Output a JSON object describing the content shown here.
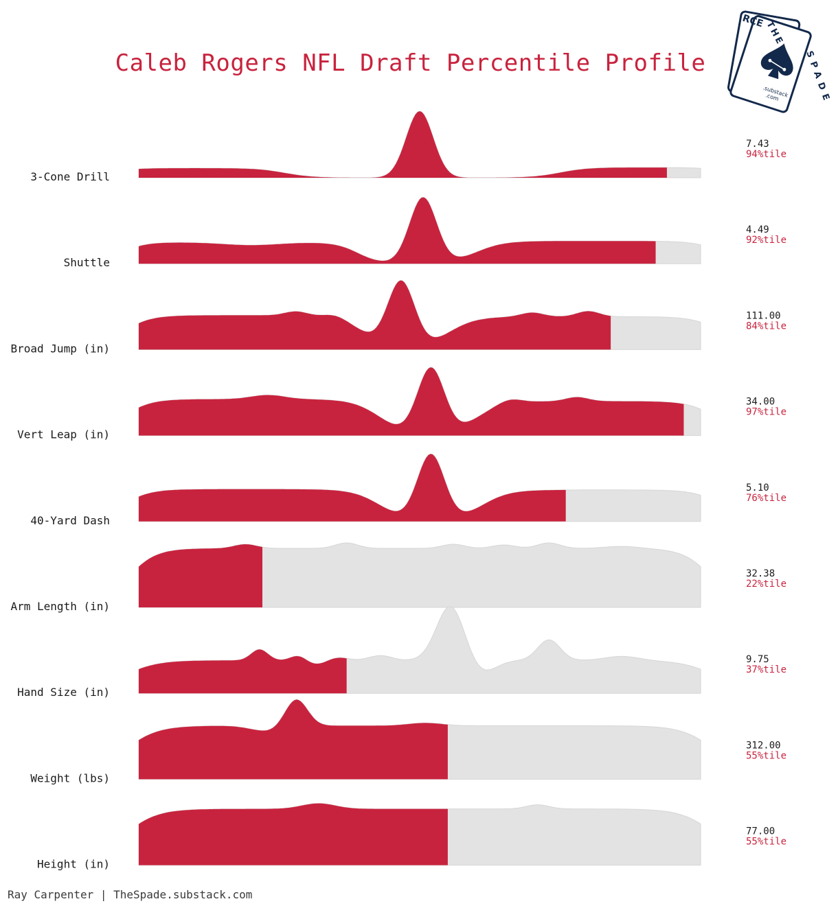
{
  "title": "Caleb Rogers NFL Draft Percentile Profile",
  "footer": "Ray Carpenter | TheSpade.substack.com",
  "logo": {
    "back_card_letters": "RCE",
    "front_card_top": "THE",
    "front_card_right": "SPADE",
    "site": ".substack",
    "site_tld": ".com"
  },
  "colors": {
    "accent": "#c8233e",
    "distribution_fill": "#e3e3e3",
    "label_text": "#1a1a1a",
    "logo_navy": "#13294b"
  },
  "chart_data": {
    "type": "area",
    "description_style": "percentile ridgeline per measurement",
    "rows": [
      {
        "label": "3-Cone Drill",
        "value": "7.43",
        "percentile_label": "94%tile",
        "percentile": 94
      },
      {
        "label": "Shuttle",
        "value": "4.49",
        "percentile_label": "92%tile",
        "percentile": 92
      },
      {
        "label": "Broad Jump (in)",
        "value": "111.00",
        "percentile_label": "84%tile",
        "percentile": 84
      },
      {
        "label": "Vert Leap (in)",
        "value": "34.00",
        "percentile_label": "97%tile",
        "percentile": 97
      },
      {
        "label": "40-Yard Dash",
        "value": "5.10",
        "percentile_label": "76%tile",
        "percentile": 76
      },
      {
        "label": "Arm Length (in)",
        "value": "32.38",
        "percentile_label": "22%tile",
        "percentile": 22
      },
      {
        "label": "Hand Size (in)",
        "value": "9.75",
        "percentile_label": "37%tile",
        "percentile": 37
      },
      {
        "label": "Weight (lbs)",
        "value": "312.00",
        "percentile_label": "55%tile",
        "percentile": 55
      },
      {
        "label": "Height (in)",
        "value": "77.00",
        "percentile_label": "55%tile",
        "percentile": 55
      }
    ]
  }
}
